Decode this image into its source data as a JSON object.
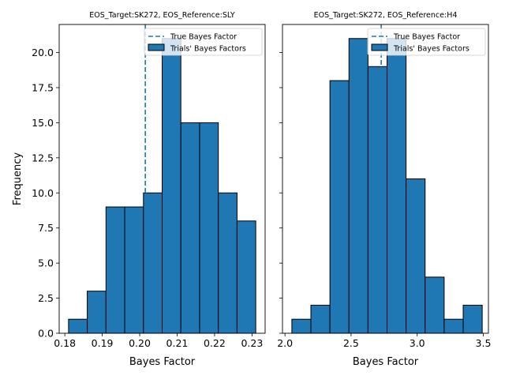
{
  "shared": {
    "ylabel": "Frequency",
    "ylim": [
      0,
      22
    ],
    "yticks": [
      0.0,
      2.5,
      5.0,
      7.5,
      10.0,
      12.5,
      15.0,
      17.5,
      20.0
    ],
    "ytick_labels": [
      "0.0",
      "2.5",
      "5.0",
      "7.5",
      "10.0",
      "12.5",
      "15.0",
      "17.5",
      "20.0"
    ],
    "bar_color": "#1f77b4",
    "edge_color": "#000000",
    "line_color": "#1f77b4"
  },
  "chart_data": [
    {
      "type": "bar",
      "title": "EOS_Target:SK272, EOS_Reference:SLY",
      "xlabel": "Bayes Factor",
      "xlim": [
        0.1785,
        0.2335
      ],
      "xticks": [
        0.18,
        0.19,
        0.2,
        0.21,
        0.22,
        0.23
      ],
      "xtick_labels": [
        "0.18",
        "0.19",
        "0.20",
        "0.21",
        "0.22",
        "0.23"
      ],
      "bin_edges": [
        0.181,
        0.186,
        0.191,
        0.196,
        0.201,
        0.206,
        0.211,
        0.216,
        0.221,
        0.226,
        0.231
      ],
      "values": [
        1,
        3,
        9,
        9,
        10,
        21,
        15,
        15,
        10,
        8
      ],
      "true_bayes_factor": 0.2015,
      "legend": {
        "position": "upper right",
        "entries": [
          "True Bayes Factor",
          "Trials' Bayes Factors"
        ]
      }
    },
    {
      "type": "bar",
      "title": "EOS_Target:SK272, EOS_Reference:H4",
      "xlabel": "Bayes Factor",
      "xlim": [
        1.981,
        3.539
      ],
      "xticks": [
        2.0,
        2.5,
        3.0,
        3.5
      ],
      "xtick_labels": [
        "2.0",
        "2.5",
        "3.0",
        "3.5"
      ],
      "bin_edges": [
        2.052,
        2.196,
        2.34,
        2.484,
        2.628,
        2.772,
        2.916,
        3.06,
        3.204,
        3.348,
        3.492
      ],
      "values": [
        1,
        2,
        18,
        21,
        19,
        21,
        11,
        4,
        1,
        2
      ],
      "true_bayes_factor": 2.728,
      "legend": {
        "position": "upper right",
        "entries": [
          "True Bayes Factor",
          "Trials' Bayes Factors"
        ]
      }
    }
  ]
}
